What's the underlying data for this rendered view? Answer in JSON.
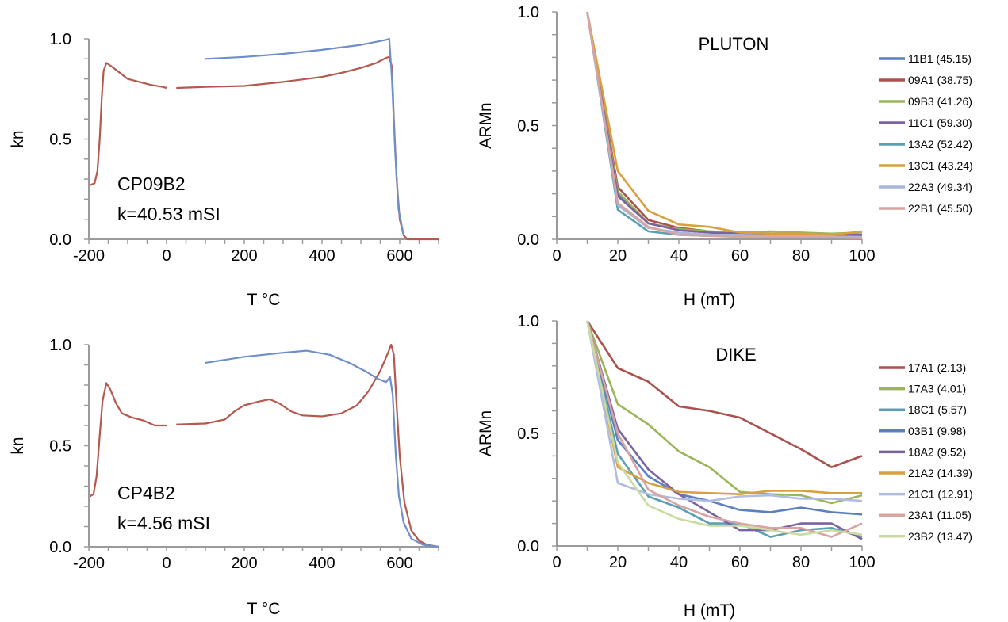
{
  "chart_data": [
    {
      "type": "line",
      "annotation": [
        "CP09B2",
        "k=40.53 mSI"
      ],
      "xlabel": "T °C",
      "ylabel": "kn",
      "xlim": [
        -200,
        700
      ],
      "ylim": [
        0,
        1
      ],
      "xticks": [
        "-200",
        "0",
        "200",
        "400",
        "600"
      ],
      "xtick_values": [
        -200,
        0,
        200,
        400,
        600
      ],
      "yticks": [
        "0.0",
        "0.5",
        "1.0"
      ],
      "ytick_values": [
        0,
        0.5,
        1
      ],
      "grid": false,
      "series": [
        {
          "color": "#b5594e",
          "segments": [
            [
              [
                -197,
                0.27
              ],
              [
                -185,
                0.28
              ],
              [
                -178,
                0.34
              ],
              [
                -172,
                0.5
              ],
              [
                -167,
                0.7
              ],
              [
                -162,
                0.84
              ],
              [
                -155,
                0.88
              ],
              [
                -140,
                0.86
              ],
              [
                -120,
                0.83
              ],
              [
                -100,
                0.8
              ],
              [
                -70,
                0.785
              ],
              [
                -40,
                0.77
              ],
              [
                -10,
                0.76
              ],
              [
                0,
                0.755
              ]
            ],
            [
              [
                25,
                0.755
              ],
              [
                100,
                0.76
              ],
              [
                200,
                0.765
              ],
              [
                300,
                0.785
              ],
              [
                400,
                0.81
              ],
              [
                450,
                0.83
              ],
              [
                500,
                0.855
              ],
              [
                540,
                0.88
              ],
              [
                565,
                0.905
              ],
              [
                573,
                0.91
              ],
              [
                580,
                0.86
              ],
              [
                585,
                0.6
              ],
              [
                592,
                0.3
              ],
              [
                600,
                0.1
              ],
              [
                610,
                0.02
              ],
              [
                620,
                0.0
              ],
              [
                700,
                0.0
              ]
            ]
          ]
        },
        {
          "color": "#6e8fca",
          "segments": [
            [
              [
                100,
                0.9
              ],
              [
                200,
                0.91
              ],
              [
                300,
                0.925
              ],
              [
                400,
                0.945
              ],
              [
                500,
                0.97
              ],
              [
                565,
                0.995
              ],
              [
                573,
                1.0
              ],
              [
                580,
                0.8
              ],
              [
                588,
                0.45
              ],
              [
                597,
                0.15
              ],
              [
                610,
                0.02
              ]
            ]
          ]
        }
      ]
    },
    {
      "type": "line",
      "annotation": [
        "CP4B2",
        "k=4.56 mSI"
      ],
      "xlabel": "T °C",
      "ylabel": "kn",
      "xlim": [
        -200,
        700
      ],
      "ylim": [
        0,
        1
      ],
      "xticks": [
        "-200",
        "0",
        "200",
        "400",
        "600"
      ],
      "xtick_values": [
        -200,
        0,
        200,
        400,
        600
      ],
      "yticks": [
        "0.0",
        "0.5",
        "1.0"
      ],
      "ytick_values": [
        0,
        0.5,
        1
      ],
      "grid": false,
      "series": [
        {
          "color": "#b5594e",
          "segments": [
            [
              [
                -197,
                0.25
              ],
              [
                -188,
                0.26
              ],
              [
                -180,
                0.35
              ],
              [
                -172,
                0.55
              ],
              [
                -165,
                0.72
              ],
              [
                -155,
                0.81
              ],
              [
                -145,
                0.78
              ],
              [
                -130,
                0.71
              ],
              [
                -115,
                0.66
              ],
              [
                -90,
                0.64
              ],
              [
                -60,
                0.625
              ],
              [
                -30,
                0.6
              ],
              [
                0,
                0.6
              ]
            ],
            [
              [
                25,
                0.605
              ],
              [
                100,
                0.61
              ],
              [
                150,
                0.63
              ],
              [
                175,
                0.67
              ],
              [
                200,
                0.7
              ],
              [
                240,
                0.72
              ],
              [
                265,
                0.73
              ],
              [
                290,
                0.71
              ],
              [
                320,
                0.67
              ],
              [
                350,
                0.65
              ],
              [
                400,
                0.645
              ],
              [
                450,
                0.66
              ],
              [
                490,
                0.7
              ],
              [
                520,
                0.77
              ],
              [
                550,
                0.87
              ],
              [
                570,
                0.96
              ],
              [
                578,
                1.0
              ],
              [
                585,
                0.95
              ],
              [
                592,
                0.7
              ],
              [
                600,
                0.45
              ],
              [
                612,
                0.22
              ],
              [
                630,
                0.08
              ],
              [
                650,
                0.03
              ],
              [
                670,
                0.01
              ],
              [
                700,
                0.0
              ]
            ]
          ]
        },
        {
          "color": "#6e8fca",
          "segments": [
            [
              [
                100,
                0.91
              ],
              [
                200,
                0.94
              ],
              [
                300,
                0.96
              ],
              [
                360,
                0.97
              ],
              [
                420,
                0.95
              ],
              [
                470,
                0.91
              ],
              [
                510,
                0.87
              ],
              [
                545,
                0.83
              ],
              [
                565,
                0.815
              ],
              [
                575,
                0.84
              ],
              [
                582,
                0.75
              ],
              [
                590,
                0.45
              ],
              [
                598,
                0.25
              ],
              [
                610,
                0.12
              ],
              [
                630,
                0.04
              ],
              [
                660,
                0.01
              ],
              [
                700,
                0.0
              ]
            ]
          ]
        }
      ]
    },
    {
      "type": "line",
      "title": "PLUTON",
      "xlabel": "H (mT)",
      "ylabel": "ARMn",
      "xlim": [
        0,
        100
      ],
      "ylim": [
        0,
        1
      ],
      "xticks": [
        "0",
        "20",
        "40",
        "60",
        "80",
        "100"
      ],
      "xtick_values": [
        0,
        20,
        40,
        60,
        80,
        100
      ],
      "yticks": [
        "0.0",
        "0.5",
        "1.0"
      ],
      "ytick_values": [
        0,
        0.5,
        1
      ],
      "grid": false,
      "legend": "right",
      "x": [
        10,
        20,
        30,
        40,
        50,
        60,
        70,
        80,
        90,
        100
      ],
      "series": [
        {
          "name": "11B1 (45.15)",
          "color": "#5b7fbf",
          "values": [
            1,
            0.2,
            0.07,
            0.04,
            0.03,
            0.025,
            0.02,
            0.02,
            0.02,
            0.015
          ]
        },
        {
          "name": "09A1 (38.75)",
          "color": "#a9524d",
          "values": [
            1,
            0.23,
            0.085,
            0.05,
            0.035,
            0.03,
            0.025,
            0.02,
            0.02,
            0.02
          ]
        },
        {
          "name": "09B3 (41.26)",
          "color": "#9bb55a",
          "values": [
            1,
            0.21,
            0.07,
            0.045,
            0.035,
            0.03,
            0.035,
            0.03,
            0.025,
            0.03
          ]
        },
        {
          "name": "11C1 (59.30)",
          "color": "#7b62a0",
          "values": [
            1,
            0.19,
            0.07,
            0.04,
            0.03,
            0.025,
            0.02,
            0.02,
            0.02,
            0.02
          ]
        },
        {
          "name": "13A2 (52.42)",
          "color": "#5aa0b4",
          "values": [
            1,
            0.13,
            0.035,
            0.02,
            0.015,
            0.015,
            0.015,
            0.012,
            0.01,
            0.01
          ]
        },
        {
          "name": "13C1 (43.24)",
          "color": "#d9a040",
          "values": [
            1,
            0.3,
            0.125,
            0.065,
            0.055,
            0.03,
            0.025,
            0.025,
            0.02,
            0.035
          ]
        },
        {
          "name": "22A3 (49.34)",
          "color": "#a9b6d8",
          "values": [
            1,
            0.15,
            0.05,
            0.03,
            0.02,
            0.02,
            0.015,
            0.015,
            0.012,
            0.01
          ]
        },
        {
          "name": "22B1 (45.50)",
          "color": "#d9a3a1",
          "values": [
            1,
            0.16,
            0.055,
            0.02,
            0.015,
            0.01,
            0.01,
            0.01,
            0.008,
            0.005
          ]
        }
      ]
    },
    {
      "type": "line",
      "title": "DIKE",
      "xlabel": "H (mT)",
      "ylabel": "ARMn",
      "xlim": [
        0,
        100
      ],
      "ylim": [
        0,
        1
      ],
      "xticks": [
        "0",
        "20",
        "40",
        "60",
        "80",
        "100"
      ],
      "xtick_values": [
        0,
        20,
        40,
        60,
        80,
        100
      ],
      "yticks": [
        "0.0",
        "0.5",
        "1.0"
      ],
      "ytick_values": [
        0,
        0.5,
        1
      ],
      "grid": false,
      "legend": "right",
      "x": [
        10,
        20,
        30,
        40,
        50,
        60,
        70,
        80,
        90,
        100
      ],
      "series": [
        {
          "name": "17A1 (2.13)",
          "color": "#a9524d",
          "values": [
            1,
            0.79,
            0.73,
            0.62,
            0.6,
            0.57,
            0.5,
            0.43,
            0.35,
            0.4
          ]
        },
        {
          "name": "17A3 (4.01)",
          "color": "#9bb55a",
          "values": [
            1,
            0.63,
            0.54,
            0.42,
            0.35,
            0.24,
            0.23,
            0.225,
            0.19,
            0.225
          ]
        },
        {
          "name": "18C1 (5.57)",
          "color": "#5aa0b4",
          "values": [
            1,
            0.41,
            0.22,
            0.17,
            0.1,
            0.1,
            0.04,
            0.07,
            0.08,
            0.04
          ]
        },
        {
          "name": "03B1 (9.98)",
          "color": "#5b7fbf",
          "values": [
            1,
            0.47,
            0.31,
            0.23,
            0.2,
            0.16,
            0.15,
            0.17,
            0.15,
            0.14
          ]
        },
        {
          "name": "18A2 (9.52)",
          "color": "#7b62a0",
          "values": [
            1,
            0.52,
            0.34,
            0.23,
            0.15,
            0.07,
            0.07,
            0.1,
            0.1,
            0.03
          ]
        },
        {
          "name": "21A2 (14.39)",
          "color": "#d9a040",
          "values": [
            1,
            0.35,
            0.28,
            0.24,
            0.235,
            0.23,
            0.245,
            0.245,
            0.235,
            0.235
          ]
        },
        {
          "name": "21C1 (12.91)",
          "color": "#b0bde0",
          "values": [
            1,
            0.28,
            0.23,
            0.21,
            0.2,
            0.22,
            0.225,
            0.21,
            0.21,
            0.2
          ]
        },
        {
          "name": "23A1 (11.05)",
          "color": "#d9a3a1",
          "values": [
            1,
            0.5,
            0.25,
            0.18,
            0.13,
            0.1,
            0.08,
            0.08,
            0.04,
            0.1
          ]
        },
        {
          "name": "23B2 (13.47)",
          "color": "#c9dba0",
          "values": [
            1,
            0.37,
            0.18,
            0.12,
            0.09,
            0.09,
            0.07,
            0.05,
            0.07,
            0.05
          ]
        }
      ]
    }
  ]
}
